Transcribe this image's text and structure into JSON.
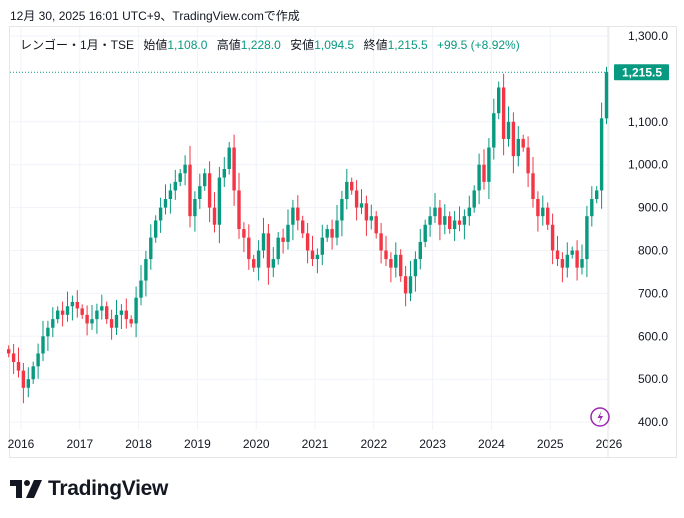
{
  "caption": "12月 30, 2025 16:01 UTC+9、TradingView.comで作成",
  "legend": {
    "symbol": "レンゴー・1月・TSE",
    "open_label": "始値",
    "open": "1,108.0",
    "high_label": "高値",
    "high": "1,228.0",
    "low_label": "安値",
    "low": "1,094.5",
    "close_label": "終値",
    "close": "1,215.5",
    "change": "+99.5 (+8.92%)"
  },
  "last_price_label": "1,215.5",
  "brand": "TradingView",
  "colors": {
    "up": "#089981",
    "down": "#f23645",
    "accent": "#089981",
    "lightning": "#9c27b0"
  },
  "chart_data": {
    "type": "candlestick",
    "title": "レンゴー・1月・TSE",
    "interval": "monthly",
    "start": "2015-10",
    "y_ticks": [
      "1,300.0",
      "1,100.0",
      "1,000.0",
      "900.0",
      "800.0",
      "700.0",
      "600.0",
      "500.0",
      "400.0"
    ],
    "y_tick_values": [
      1300,
      1100,
      1000,
      900,
      800,
      700,
      600,
      500,
      400
    ],
    "x_ticks": [
      "2016",
      "2017",
      "2018",
      "2019",
      "2020",
      "2021",
      "2022",
      "2023",
      "2024",
      "2025",
      "2026"
    ],
    "ylim": [
      400,
      1300
    ],
    "first_open": 570,
    "closes": [
      560,
      540,
      520,
      480,
      500,
      530,
      560,
      600,
      620,
      640,
      660,
      650,
      670,
      680,
      665,
      650,
      630,
      640,
      660,
      670,
      640,
      620,
      650,
      660,
      640,
      630,
      690,
      730,
      780,
      830,
      870,
      900,
      920,
      940,
      960,
      980,
      1000,
      880,
      920,
      950,
      980,
      900,
      860,
      970,
      990,
      1040,
      940,
      850,
      830,
      780,
      760,
      800,
      840,
      760,
      780,
      830,
      820,
      860,
      900,
      870,
      840,
      800,
      780,
      790,
      830,
      850,
      830,
      870,
      920,
      960,
      940,
      900,
      910,
      870,
      880,
      840,
      800,
      780,
      760,
      790,
      740,
      700,
      740,
      780,
      820,
      860,
      880,
      900,
      860,
      880,
      850,
      870,
      860,
      880,
      900,
      940,
      1000,
      960,
      1040,
      1120,
      1180,
      1060,
      1100,
      1020,
      1060,
      1040,
      980,
      920,
      880,
      900,
      860,
      800,
      780,
      760,
      790,
      800,
      760,
      780,
      880,
      920,
      940,
      1108,
      1215.5
    ],
    "last_candle": {
      "open": 1108.0,
      "high": 1228.0,
      "low": 1094.5,
      "close": 1215.5
    }
  }
}
